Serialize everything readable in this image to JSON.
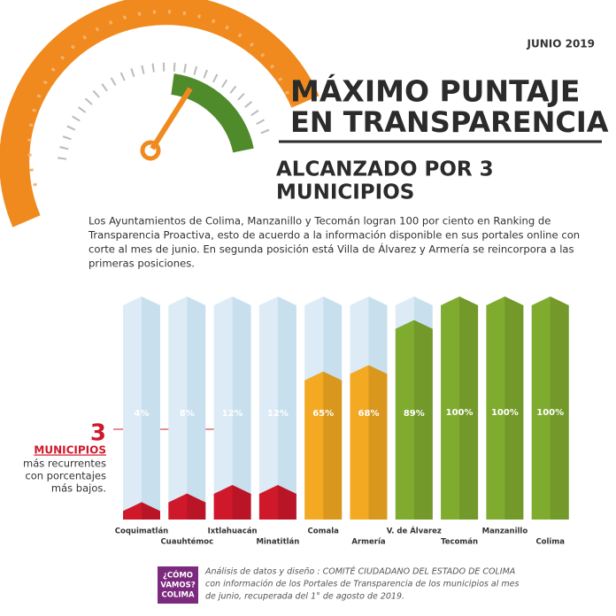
{
  "header": {
    "date": "JUNIO 2019",
    "title_lines": [
      "MÁXIMO PUNTAJE",
      "EN TRANSPARENCIA"
    ],
    "subtitle_lines": [
      "ALCANZADO POR 3",
      "MUNICIPIOS"
    ]
  },
  "intro_lines": [
    "Los Ayuntamientos de Colima, Manzanillo y Tecomán logran 100 por ciento en  Ranking de",
    "Transparencia Proactiva, esto de acuerdo a la información disponible en sus portales online con",
    "corte al mes de junio. En segunda posición está Villa de Álvarez y Armería se reincorpora a las",
    "primeras posiciones."
  ],
  "annotation": {
    "number": "3",
    "word": "MUNICIPIOS",
    "lines": [
      "más recurrentes",
      "con porcentajes",
      "más bajos."
    ]
  },
  "chart_data": {
    "type": "bar",
    "categories": [
      "Coquimatlán",
      "Cuauhtémoc",
      "Ixtlahuacán",
      "Minatitlán",
      "Comala",
      "Armería",
      "V. de Álvarez",
      "Tecomán",
      "Manzanillo",
      "Colima"
    ],
    "values": [
      4,
      8,
      12,
      12,
      65,
      68,
      89,
      100,
      100,
      100
    ],
    "value_labels": [
      "4%",
      "8%",
      "12%",
      "12%",
      "65%",
      "68%",
      "89%",
      "100%",
      "100%",
      "100%"
    ],
    "colors": [
      "#d0182b",
      "#d0182b",
      "#d0182b",
      "#d0182b",
      "#f3a922",
      "#f3a922",
      "#7fab2e",
      "#7fab2e",
      "#7fab2e",
      "#7fab2e"
    ],
    "ylim": [
      0,
      100
    ]
  },
  "footer": {
    "logo_lines": [
      "¿CÓMO",
      "VAMOS?",
      "COLIMA"
    ],
    "lines": [
      "Análisis de datos y diseño : COMITÉ CIUDADANO DEL ESTADO DE COLIMA",
      "con información de los Portales de Transparencia de los municipios al mes",
      "de junio, recuperada del 1° de agosto de 2019."
    ]
  }
}
